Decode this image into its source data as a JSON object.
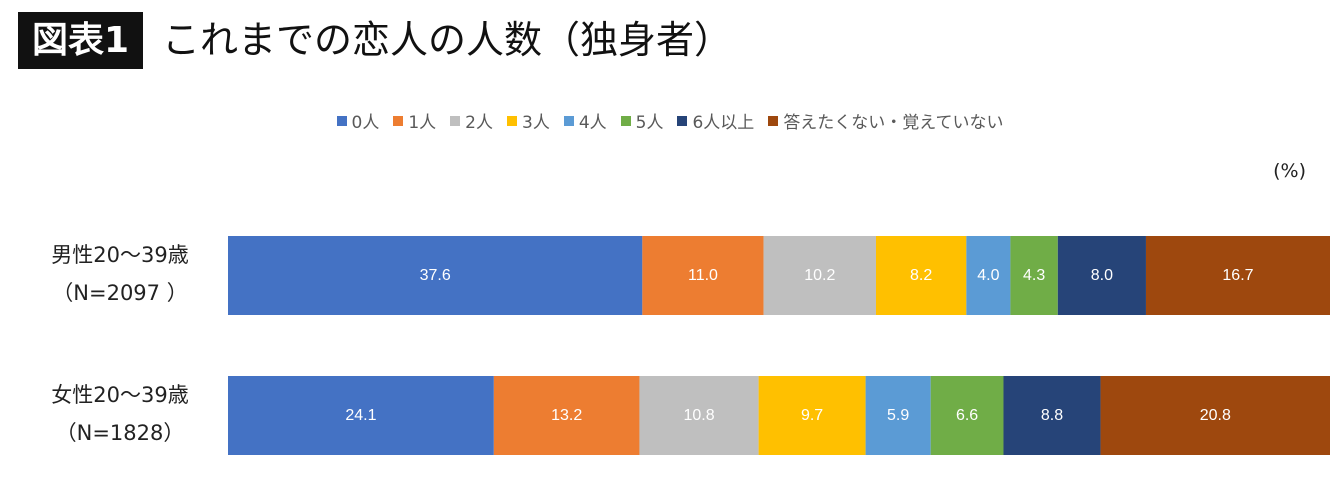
{
  "header": {
    "badge": "図表1",
    "title": "これまでの恋人の人数（独身者）"
  },
  "unit_label": "(%)",
  "chart_data": {
    "type": "bar",
    "orientation": "horizontal",
    "stacked": true,
    "xlim": [
      0,
      100
    ],
    "legend_position": "top",
    "categories": [
      {
        "line1": "男性20〜39歳",
        "line2": "（N=2097 ）"
      },
      {
        "line1": "女性20〜39歳",
        "line2": "（N=1828）"
      }
    ],
    "series": [
      {
        "name": "0人",
        "color": "#4472C4",
        "values": [
          37.6,
          24.1
        ]
      },
      {
        "name": "1人",
        "color": "#ED7D31",
        "values": [
          11.0,
          13.2
        ]
      },
      {
        "name": "2人",
        "color": "#BFBFBF",
        "values": [
          10.2,
          10.8
        ]
      },
      {
        "name": "3人",
        "color": "#FFC000",
        "values": [
          8.2,
          9.7
        ]
      },
      {
        "name": "4人",
        "color": "#5B9BD5",
        "values": [
          4.0,
          5.9
        ]
      },
      {
        "name": "5人",
        "color": "#70AD47",
        "values": [
          4.3,
          6.6
        ]
      },
      {
        "name": "6人以上",
        "color": "#264478",
        "values": [
          8.0,
          8.8
        ]
      },
      {
        "name": "答えたくない・覚えていない",
        "color": "#9E480E",
        "values": [
          16.7,
          20.8
        ]
      }
    ]
  }
}
